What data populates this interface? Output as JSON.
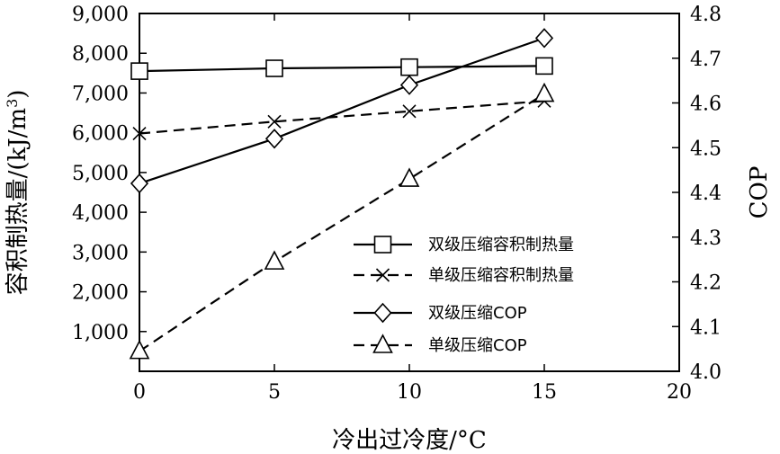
{
  "chart_data": {
    "type": "line",
    "xlabel": "冷出过冷度/°C",
    "ylabel_left": "容积制热量/(kJ/m",
    "ylabel_left_sup": "3",
    "ylabel_left_close": ")",
    "ylabel_right": "COP",
    "xlim": [
      0,
      20
    ],
    "ylim_left": [
      0,
      9000
    ],
    "ylim_right": [
      4.0,
      4.8
    ],
    "x_ticks": [
      0,
      5,
      10,
      15,
      20
    ],
    "x_tick_labels": [
      "0",
      "5",
      "10",
      "15",
      "20"
    ],
    "y_left_ticks": [
      1000,
      2000,
      3000,
      4000,
      5000,
      6000,
      7000,
      8000,
      9000
    ],
    "y_left_tick_labels": [
      "1,000",
      "2,000",
      "3,000",
      "4,000",
      "5,000",
      "6,000",
      "7,000",
      "8,000",
      "9,000"
    ],
    "y_right_ticks": [
      4.0,
      4.1,
      4.2,
      4.3,
      4.4,
      4.5,
      4.6,
      4.7,
      4.8
    ],
    "y_right_tick_labels": [
      "4.0",
      "4.1",
      "4.2",
      "4.3",
      "4.4",
      "4.5",
      "4.6",
      "4.7",
      "4.8"
    ],
    "grid": false,
    "legend_position": "lower-right",
    "series": [
      {
        "name": "双级压缩容积制热量",
        "axis": "left",
        "marker": "square",
        "dash": "solid",
        "x": [
          0,
          5,
          10,
          15
        ],
        "y": [
          7550,
          7620,
          7650,
          7680
        ]
      },
      {
        "name": "单级压缩容积制热量",
        "axis": "left",
        "marker": "cross",
        "dash": "dashed",
        "x": [
          0,
          5,
          10,
          15
        ],
        "y": [
          5980,
          6280,
          6540,
          6800
        ]
      },
      {
        "name": "双级压缩COP",
        "axis": "right",
        "marker": "diamond",
        "dash": "solid",
        "x": [
          0,
          5,
          10,
          15
        ],
        "y": [
          4.42,
          4.52,
          4.64,
          4.745
        ]
      },
      {
        "name": "单级压缩COP",
        "axis": "right",
        "marker": "triangle",
        "dash": "dashed",
        "x": [
          0,
          5,
          10,
          15
        ],
        "y": [
          4.045,
          4.245,
          4.43,
          4.62
        ]
      }
    ]
  }
}
